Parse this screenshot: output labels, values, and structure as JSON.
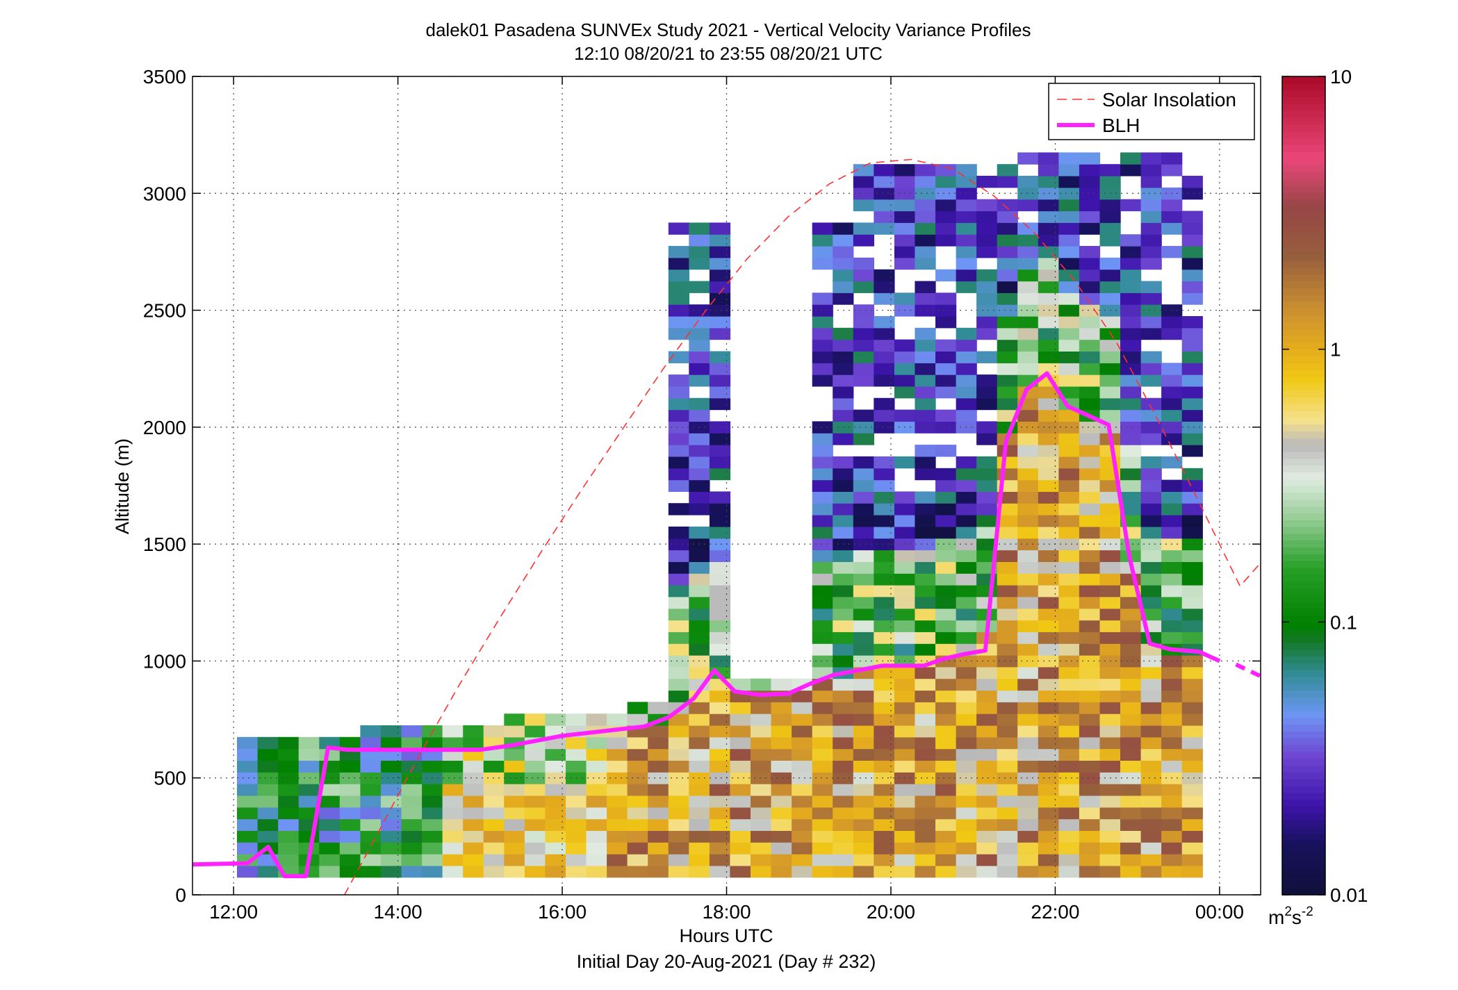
{
  "chart_data": {
    "type": "heatmap",
    "title": "dalek01 Pasadena SUNVEx Study 2021 - Vertical Velocity Variance Profiles",
    "subtitle": "12:10 08/20/21 to 23:55 08/20/21  UTC",
    "xlabel": "Hours UTC",
    "xlabel2": "Initial Day 20-Aug-2021 (Day # 232)",
    "ylabel": "Altitude (m)",
    "xlim": [
      11.5,
      24.5
    ],
    "ylim": [
      0,
      3500
    ],
    "grid": true,
    "x_ticks": [
      12,
      14,
      16,
      18,
      20,
      22,
      24
    ],
    "x_tick_labels": [
      "12:00",
      "14:00",
      "16:00",
      "18:00",
      "20:00",
      "22:00",
      "00:00"
    ],
    "y_ticks": [
      0,
      500,
      1000,
      1500,
      2000,
      2500,
      3000,
      3500
    ],
    "y_tick_labels": [
      "0",
      "500",
      "1000",
      "1500",
      "2000",
      "2500",
      "3000",
      "3500"
    ],
    "colorbar": {
      "scale": "log",
      "range": [
        0.01,
        10
      ],
      "ticks": [
        0.01,
        0.1,
        1,
        10
      ],
      "tick_labels": [
        "0.01",
        "0.1",
        "1",
        "10"
      ],
      "units_base": "m",
      "units_sup1": "2",
      "units_mid": "s",
      "units_sup2": "-2"
    },
    "legend": {
      "placement": "top-right",
      "entries": [
        {
          "label": "Solar Insolation",
          "color": "#ff3030",
          "style": "dashed"
        },
        {
          "label": "BLH",
          "color": "#ff22ff",
          "style": "solid"
        }
      ]
    },
    "heatmap_grid": {
      "t_start": 12.1667,
      "t_step": 0.25,
      "n_times": 48,
      "z_start": 100,
      "z_step": 50,
      "n_levels": 62,
      "value_units": "m2s-2"
    },
    "blh_series": {
      "name": "BLH",
      "x": [
        11.5,
        12.17,
        12.42,
        12.62,
        12.88,
        13.15,
        13.4,
        14.0,
        15.0,
        15.4,
        16.0,
        16.5,
        17.0,
        17.3,
        17.6,
        17.85,
        18.1,
        18.4,
        18.75,
        19.0,
        19.3,
        19.6,
        19.9,
        20.2,
        20.4,
        20.65,
        20.9,
        21.15,
        21.4,
        21.65,
        21.9,
        22.15,
        22.4,
        22.65,
        22.9,
        23.15,
        23.4,
        23.75,
        24.0
      ],
      "y": [
        130,
        135,
        205,
        80,
        80,
        630,
        620,
        620,
        620,
        640,
        680,
        700,
        720,
        760,
        840,
        960,
        870,
        855,
        860,
        900,
        940,
        960,
        980,
        980,
        980,
        1010,
        1030,
        1045,
        1940,
        2160,
        2230,
        2090,
        2050,
        2010,
        1450,
        1075,
        1050,
        1040,
        1000
      ]
    },
    "blh_tail": {
      "x": [
        24.2,
        24.5
      ],
      "y": [
        985,
        935
      ]
    },
    "solar_insolation": {
      "name": "Solar Insolation",
      "x": [
        13.35,
        13.75,
        14.25,
        14.75,
        15.25,
        15.75,
        16.25,
        16.75,
        17.25,
        17.75,
        18.25,
        18.75,
        19.25,
        19.75,
        20.25,
        20.75,
        21.25,
        21.75,
        22.25,
        22.75,
        23.25,
        23.75,
        24.25,
        24.5
      ],
      "y": [
        0,
        260,
        590,
        900,
        1190,
        1470,
        1740,
        2000,
        2260,
        2500,
        2720,
        2900,
        3040,
        3130,
        3145,
        3105,
        2990,
        2830,
        2620,
        2360,
        2030,
        1680,
        1320,
        1420
      ]
    }
  }
}
